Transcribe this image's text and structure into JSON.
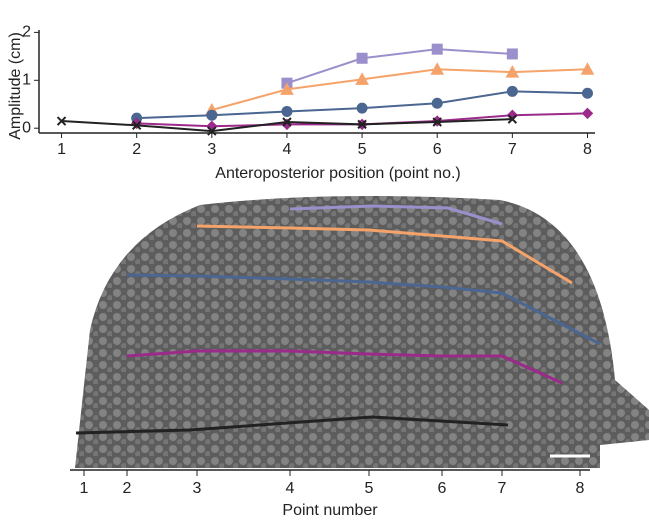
{
  "chart_data": {
    "type": "line",
    "x_label": "Anteroposterior position (point no.)",
    "y_label": "Amplitude (cm)",
    "x": [
      1,
      2,
      3,
      4,
      5,
      6,
      7,
      8
    ],
    "xlim": [
      0.7,
      8.1
    ],
    "xticks": [
      1,
      2,
      3,
      4,
      5,
      6,
      7,
      8
    ],
    "ylim": [
      -0.1,
      2.05
    ],
    "yticks": [
      0,
      1,
      2
    ],
    "series": [
      {
        "color": "#9b8fcc",
        "marker": "square",
        "values": [
          null,
          null,
          null,
          0.94,
          1.46,
          1.65,
          1.55,
          null
        ]
      },
      {
        "color": "#f5a36a",
        "marker": "triangle",
        "values": [
          null,
          null,
          0.38,
          0.81,
          1.02,
          1.23,
          1.17,
          1.23
        ]
      },
      {
        "color": "#4a6691",
        "marker": "circle",
        "values": [
          null,
          0.21,
          0.27,
          0.35,
          0.42,
          0.52,
          0.77,
          0.73
        ]
      },
      {
        "color": "#9b2a8a",
        "marker": "diamond",
        "values": [
          null,
          0.1,
          0.04,
          0.08,
          0.08,
          0.15,
          0.27,
          0.31
        ]
      },
      {
        "color": "#222222",
        "marker": "cross",
        "values": [
          0.15,
          0.06,
          -0.06,
          0.13,
          0.08,
          0.13,
          0.19,
          null
        ]
      }
    ]
  },
  "image_axis": {
    "ticks": [
      "1",
      "2",
      "3",
      "4",
      "5",
      "6",
      "7",
      "8"
    ],
    "label": "Point number"
  }
}
